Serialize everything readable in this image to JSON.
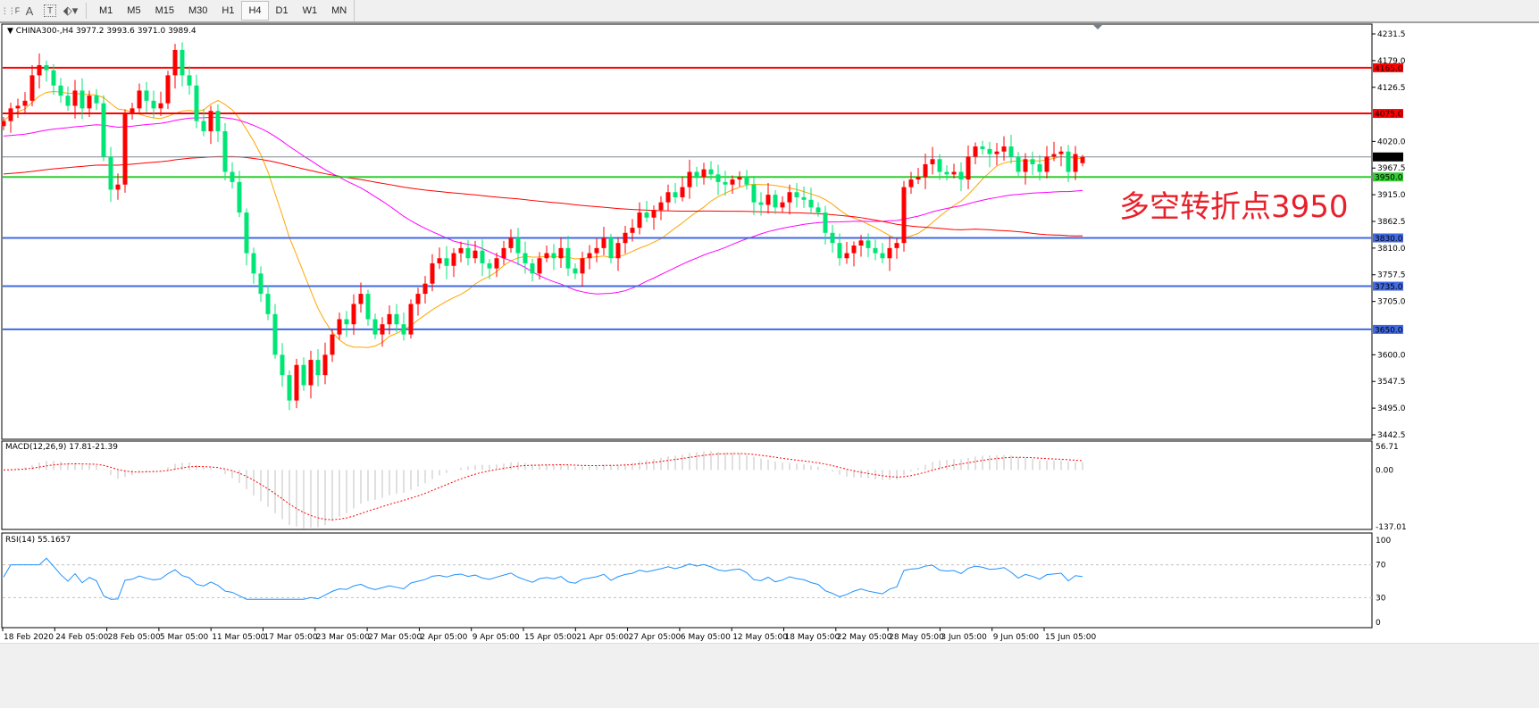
{
  "toolbar": {
    "icons": [
      "period-separator-icon",
      "text-icon",
      "text-label-icon",
      "arrows-icon"
    ],
    "text_glyph": "A",
    "label_glyph": "T",
    "timeframes": [
      "M1",
      "M5",
      "M15",
      "M30",
      "H1",
      "H4",
      "D1",
      "W1",
      "MN"
    ],
    "active_timeframe": "H4"
  },
  "chart": {
    "header": "CHINA300-,H4  3977.2 3993.6 3971.0 3989.4",
    "annotation": "多空转折点3950",
    "annotation_color": "#e8202a",
    "bull_color": "#ff0000",
    "bear_color": "#00e676",
    "macd_label": "MACD(12,26,9) 17.81-21.39",
    "rsi_label": "RSI(14) 55.1657"
  },
  "chart_data": {
    "type": "candlestick",
    "symbol": "CHINA300-",
    "timeframe": "H4",
    "last_bar": {
      "open": 3977.2,
      "high": 3993.6,
      "low": 3971.0,
      "close": 3989.4
    },
    "closes": [
      4060,
      4085,
      4090,
      4100,
      4150,
      4170,
      4160,
      4130,
      4110,
      4090,
      4120,
      4085,
      4110,
      4095,
      3990,
      3925,
      3935,
      4075,
      4085,
      4120,
      4100,
      4085,
      4095,
      4150,
      4200,
      4150,
      4130,
      4060,
      4040,
      4080,
      4040,
      3960,
      3940,
      3880,
      3800,
      3760,
      3720,
      3680,
      3600,
      3560,
      3510,
      3580,
      3540,
      3590,
      3560,
      3600,
      3640,
      3670,
      3660,
      3700,
      3720,
      3670,
      3640,
      3660,
      3680,
      3660,
      3640,
      3700,
      3720,
      3740,
      3780,
      3790,
      3775,
      3800,
      3810,
      3790,
      3805,
      3780,
      3770,
      3790,
      3810,
      3830,
      3800,
      3780,
      3760,
      3790,
      3800,
      3790,
      3810,
      3770,
      3760,
      3790,
      3800,
      3810,
      3830,
      3790,
      3820,
      3840,
      3850,
      3880,
      3870,
      3885,
      3900,
      3920,
      3910,
      3930,
      3960,
      3950,
      3965,
      3955,
      3940,
      3935,
      3945,
      3950,
      3935,
      3900,
      3895,
      3915,
      3890,
      3900,
      3920,
      3910,
      3905,
      3890,
      3880,
      3840,
      3820,
      3790,
      3800,
      3815,
      3825,
      3810,
      3800,
      3790,
      3810,
      3820,
      3930,
      3945,
      3950,
      3975,
      3985,
      3960,
      3955,
      3960,
      3945,
      3990,
      4010,
      4005,
      3995,
      4000,
      4010,
      3990,
      3960,
      3985,
      3975,
      3960,
      3990,
      3995,
      4000,
      3960,
      3995,
      3989.4
    ],
    "price_axis_ticks": [
      "4231.5",
      "4179.0",
      "4126.5",
      "4020.0",
      "3967.5",
      "3915.0",
      "3862.5",
      "3810.0",
      "3757.5",
      "3705.0",
      "3600.0",
      "3547.5",
      "3495.0",
      "3442.5"
    ],
    "price_range": [
      3442.5,
      4231.5
    ],
    "horizontal_levels": [
      {
        "price": 4165.0,
        "label": "4165.0",
        "color": "#ff0000"
      },
      {
        "price": 4075.0,
        "label": "4075.0",
        "color": "#ff0000"
      },
      {
        "price": 3989.4,
        "label": "3989.4",
        "color": "#808890",
        "label_bg": "#000000"
      },
      {
        "price": 3950.0,
        "label": "3950.0",
        "color": "#32cd32"
      },
      {
        "price": 3830.0,
        "label": "3830.0",
        "color": "#4169e1"
      },
      {
        "price": 3735.0,
        "label": "3735.0",
        "color": "#4169e1"
      },
      {
        "price": 3650.0,
        "label": "3650.0",
        "color": "#4169e1"
      }
    ],
    "moving_averages": [
      {
        "color": "#ffa500"
      },
      {
        "color": "#ff00ff"
      },
      {
        "color": "#ff0000"
      }
    ],
    "time_axis_labels": [
      "18 Feb 2020",
      "24 Feb 05:00",
      "28 Feb 05:00",
      "5 Mar 05:00",
      "11 Mar 05:00",
      "17 Mar 05:00",
      "23 Mar 05:00",
      "27 Mar 05:00",
      "2 Apr 05:00",
      "9 Apr 05:00",
      "15 Apr 05:00",
      "21 Apr 05:00",
      "27 Apr 05:00",
      "6 May 05:00",
      "12 May 05:00",
      "18 May 05:00",
      "22 May 05:00",
      "28 May 05:00",
      "3 Jun 05:00",
      "9 Jun 05:00",
      "15 Jun 05:00"
    ],
    "macd": {
      "params": "12,26,9",
      "main": 17.81,
      "signal": -21.39,
      "axis_ticks": [
        "56.71",
        "0.00",
        "-137.01"
      ],
      "range": [
        -137.01,
        56.71
      ],
      "histogram_color": "#c0c0c0",
      "signal_color": "#ff0000"
    },
    "rsi": {
      "period": 14,
      "value": 55.1657,
      "axis_ticks": [
        "100",
        "70",
        "30",
        "0"
      ],
      "levels": [
        70,
        30
      ],
      "color": "#1e90ff"
    }
  }
}
